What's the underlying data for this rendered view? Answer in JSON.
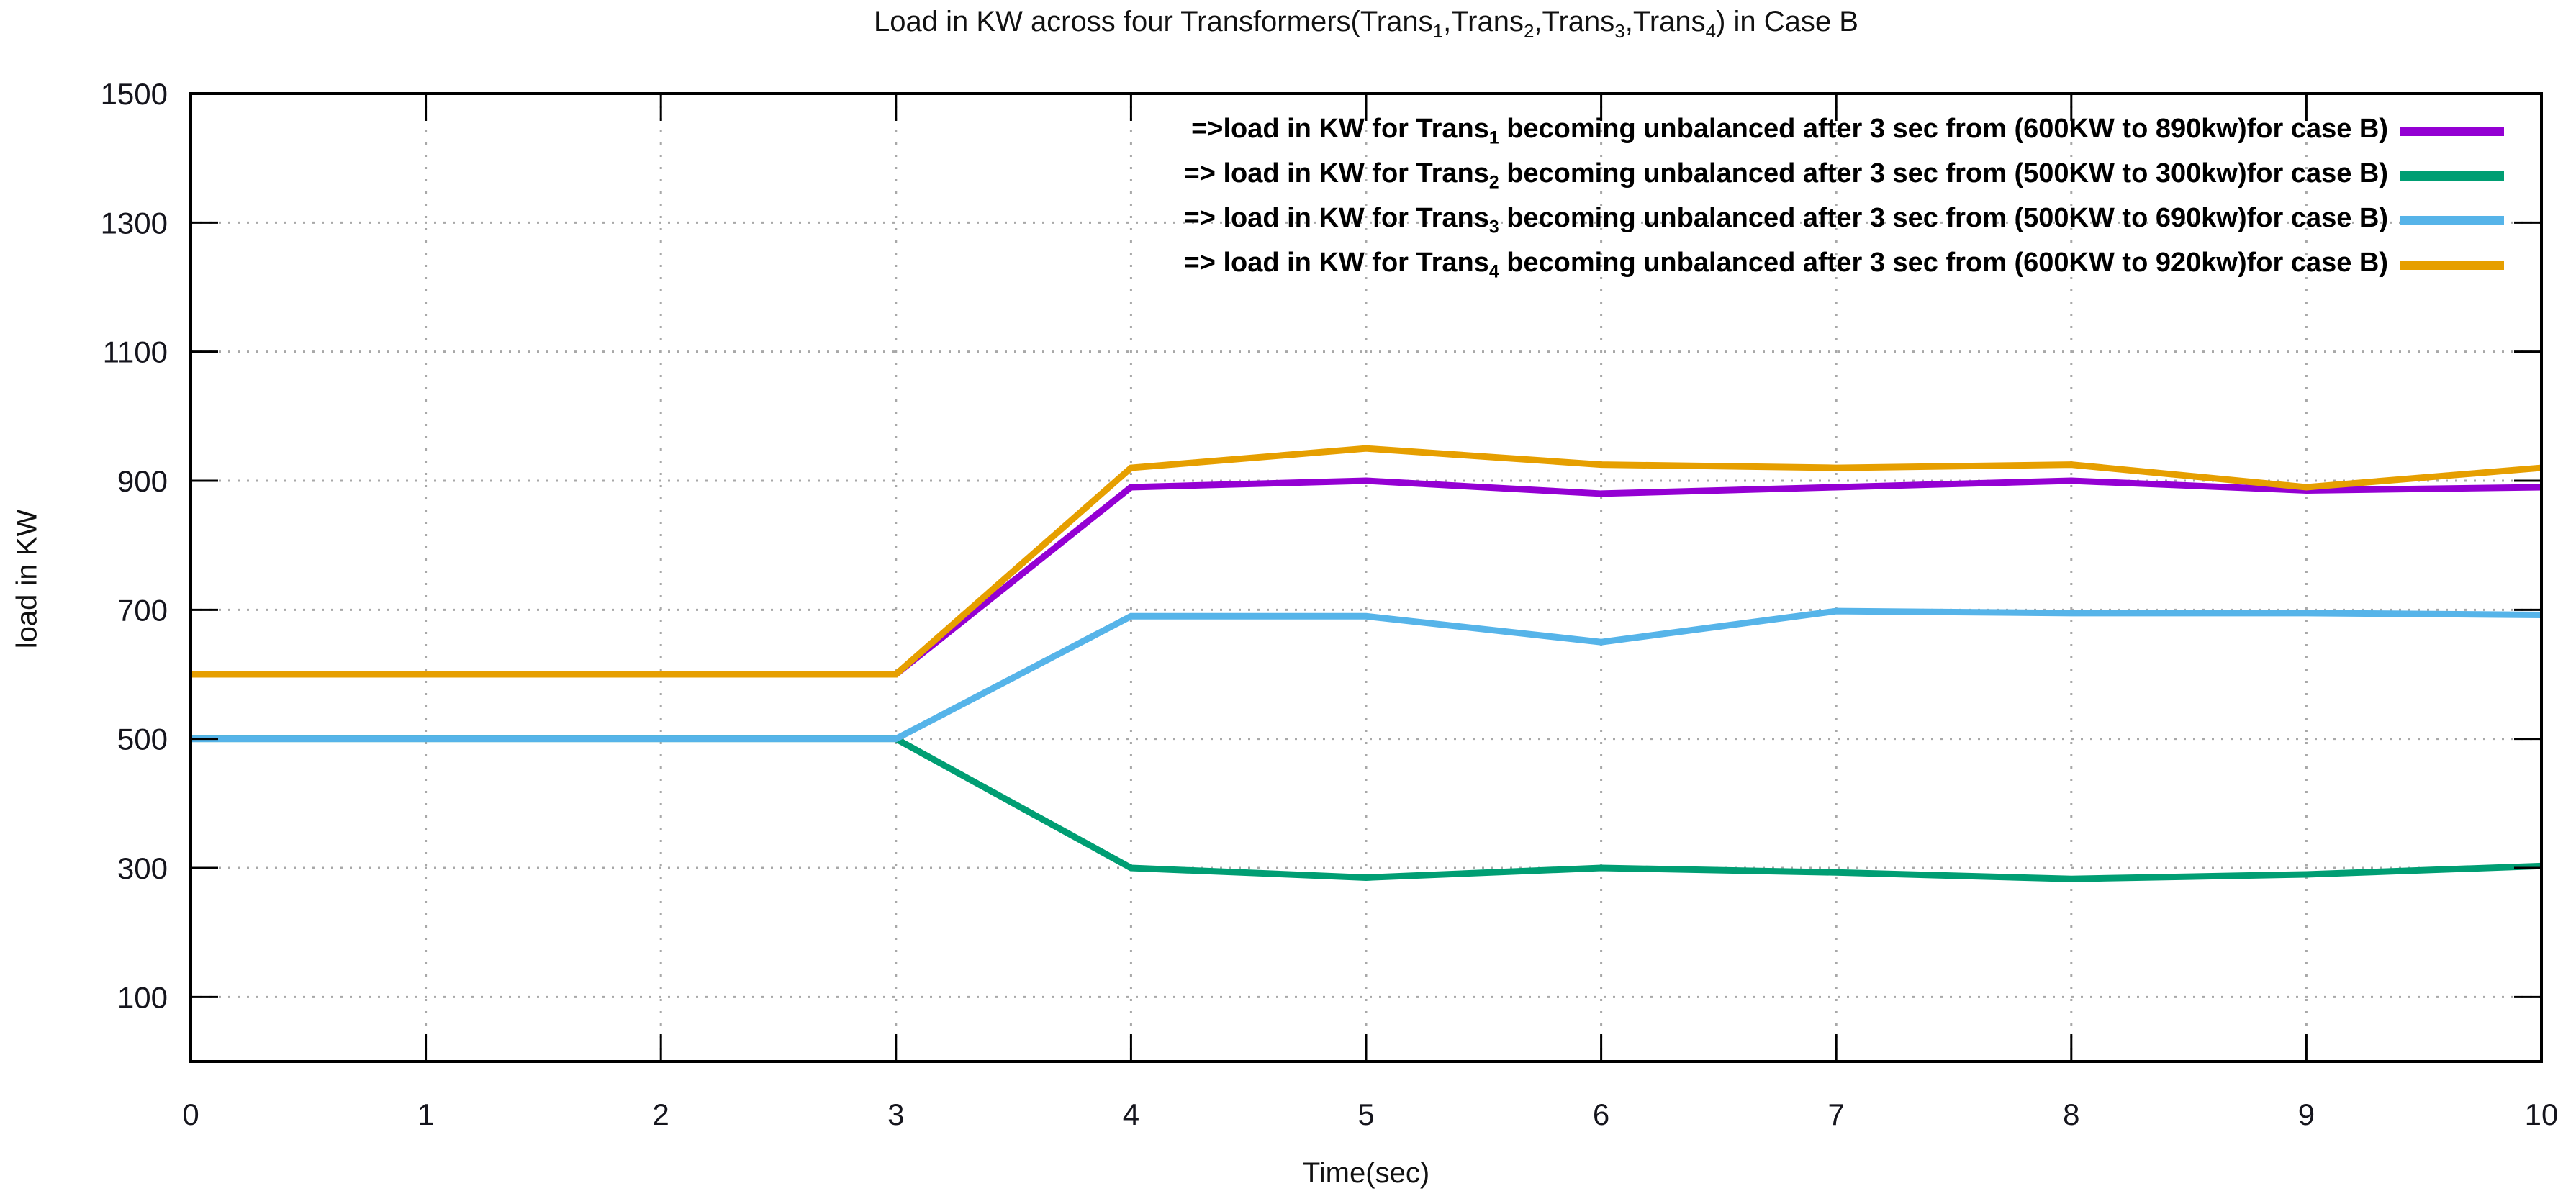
{
  "title": {
    "segments": [
      {
        "text": "Load in KW across four Transformers(Trans"
      },
      {
        "sub": "1"
      },
      {
        "text": ",Trans"
      },
      {
        "sub": "2"
      },
      {
        "text": ",Trans"
      },
      {
        "sub": "3"
      },
      {
        "text": ",Trans"
      },
      {
        "sub": "4"
      },
      {
        "text": ") in Case B"
      }
    ]
  },
  "axes": {
    "x_label": "Time(sec)",
    "y_label": "load in KW",
    "x_tick_labels": [
      "0",
      "1",
      "2",
      "3",
      "4",
      "5",
      "6",
      "7",
      "8",
      "9",
      "10"
    ],
    "y_tick_labels": [
      "100",
      "300",
      "500",
      "700",
      "900",
      "1100",
      "1300",
      "1500"
    ]
  },
  "chart_data": {
    "type": "line",
    "title": "Load in KW across four Transformers(Trans1,Trans2,Trans3,Trans4) in Case B",
    "xlabel": "Time(sec)",
    "ylabel": "load in KW",
    "xlim": [
      0,
      10
    ],
    "ylim": [
      0,
      1500
    ],
    "x_ticks": [
      0,
      1,
      2,
      3,
      4,
      5,
      6,
      7,
      8,
      9,
      10
    ],
    "y_ticks": [
      100,
      300,
      500,
      700,
      900,
      1100,
      1300,
      1500
    ],
    "grid": true,
    "grid_style": "dotted",
    "legend_position": "top-right",
    "x": [
      0,
      1,
      2,
      3,
      4,
      5,
      6,
      7,
      8,
      9,
      10
    ],
    "series": [
      {
        "name": "Trans1",
        "color": "#9400d3",
        "values": [
          600,
          600,
          600,
          600,
          890,
          900,
          880,
          890,
          900,
          885,
          890
        ],
        "legend": {
          "pre": "=>load in KW for Trans",
          "sub": "1",
          "post": " becoming unbalanced after 3 sec from (600KW to 890kw)for case B)"
        }
      },
      {
        "name": "Trans2",
        "color": "#009e73",
        "values": [
          500,
          500,
          500,
          500,
          300,
          285,
          300,
          293,
          283,
          290,
          303
        ],
        "legend": {
          "pre": "=> load in KW for Trans",
          "sub": "2",
          "post": " becoming unbalanced after 3 sec from (500KW to 300kw)for case B)"
        }
      },
      {
        "name": "Trans3",
        "color": "#56b4e9",
        "values": [
          500,
          500,
          500,
          500,
          690,
          690,
          650,
          698,
          695,
          695,
          692
        ],
        "legend": {
          "pre": "=> load in KW for Trans",
          "sub": "3",
          "post": " becoming unbalanced after 3 sec from (500KW to 690kw)for case B)"
        }
      },
      {
        "name": "Trans4",
        "color": "#e69f00",
        "values": [
          600,
          600,
          600,
          600,
          920,
          950,
          925,
          920,
          925,
          890,
          920
        ],
        "legend": {
          "pre": "=> load in KW for Trans",
          "sub": "4",
          "post": " becoming unbalanced after 3 sec from (600KW to 920kw)for case B)"
        }
      }
    ],
    "colors": {
      "trans1": "#9400d3",
      "trans2": "#009e73",
      "trans3": "#56b4e9",
      "trans4": "#e69f00",
      "border": "#000000",
      "grid": "#a8a8a8",
      "text": "#111111"
    }
  }
}
